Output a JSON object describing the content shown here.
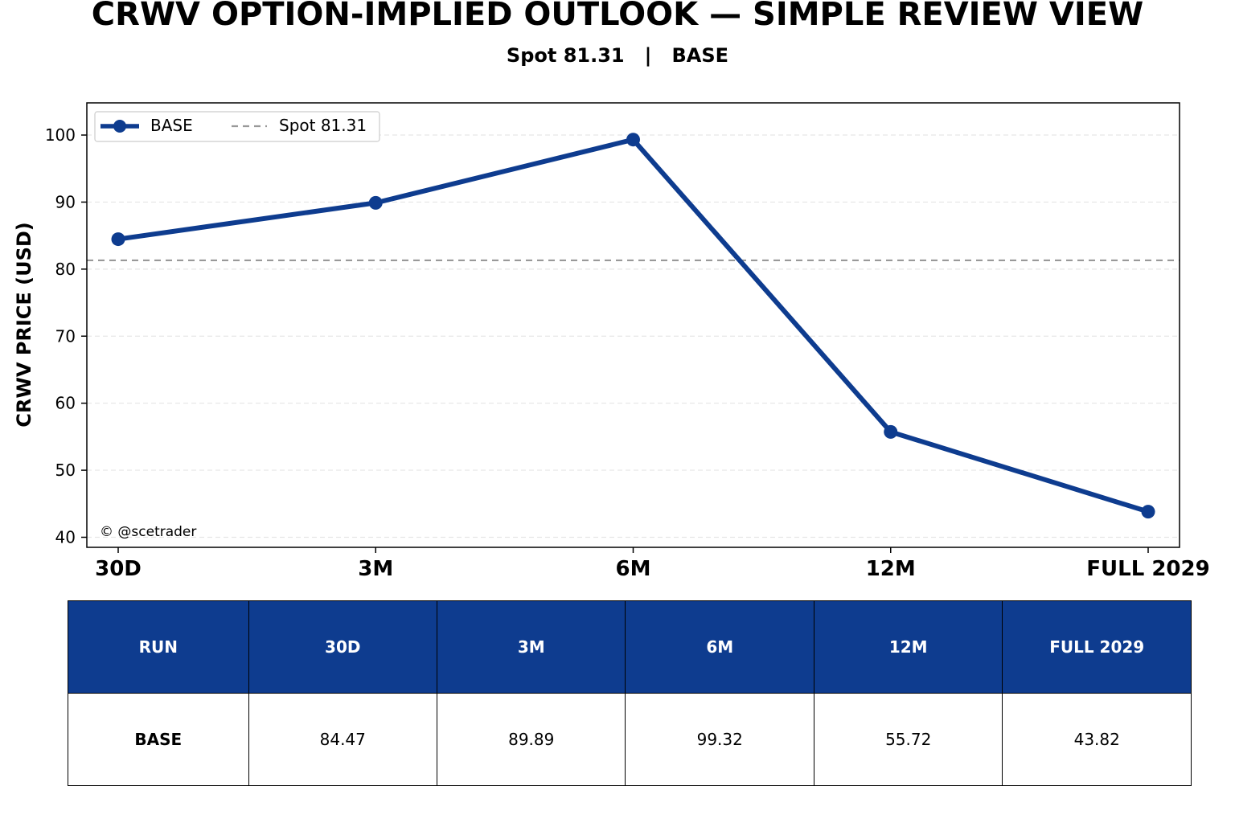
{
  "title": "CRWV OPTION-IMPLIED OUTLOOK — SIMPLE REVIEW VIEW",
  "subtitle": "Spot 81.31   |   BASE",
  "watermark": "© @scetrader",
  "colors": {
    "series": "#0e3c8f",
    "spot_line": "#999999",
    "grid": "#e6e6e6",
    "table_header_bg": "#0e3c8f",
    "table_header_text": "#ffffff"
  },
  "chart_data": {
    "type": "line",
    "categories": [
      "30D",
      "3M",
      "6M",
      "12M",
      "FULL 2029"
    ],
    "series": [
      {
        "name": "BASE",
        "values": [
          84.47,
          89.89,
          99.32,
          55.72,
          43.82
        ]
      }
    ],
    "reference_line": {
      "name": "Spot 81.31",
      "value": 81.31,
      "style": "dashed"
    },
    "ylabel": "CRWV PRICE (USD)",
    "xlabel": "",
    "ylim": [
      38.5,
      104.8
    ],
    "yticks": [
      40,
      50,
      60,
      70,
      80,
      90,
      100
    ],
    "grid": "horizontal-dashed",
    "legend_placement": "top-left"
  },
  "table": {
    "headers": [
      "RUN",
      "30D",
      "3M",
      "6M",
      "12M",
      "FULL 2029"
    ],
    "rows": [
      [
        "BASE",
        "84.47",
        "89.89",
        "99.32",
        "55.72",
        "43.82"
      ]
    ]
  }
}
